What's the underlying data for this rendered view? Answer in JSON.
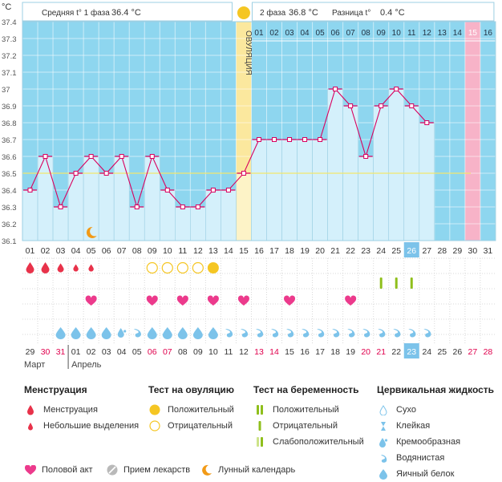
{
  "header": {
    "unit": "°C",
    "phase1_label": "Средняя t° 1 фаза",
    "phase1_value": "36.4 °C",
    "phase2_label": "2 фаза",
    "phase2_value": "36.8 °C",
    "diff_label": "Разница t°",
    "diff_value": "0.4 °C",
    "ovulation_label": "ОВУЛЯЦИЯ"
  },
  "chart_data": {
    "type": "line",
    "title": "",
    "ylabel": "°C",
    "ylim": [
      36.1,
      37.4
    ],
    "y_ticks": [
      "37.4",
      "37.3",
      "37.2",
      "37.1",
      "37",
      "36.9",
      "36.8",
      "36.7",
      "36.6",
      "36.5",
      "36.4",
      "36.3",
      "36.2",
      "36.1"
    ],
    "coverline": 36.5,
    "ovulation_day": 15,
    "current_day": 26,
    "expected_period_day": 30,
    "days": [
      "01",
      "02",
      "03",
      "04",
      "05",
      "06",
      "07",
      "08",
      "09",
      "10",
      "11",
      "12",
      "13",
      "14",
      "15",
      "16",
      "17",
      "18",
      "19",
      "20",
      "21",
      "22",
      "23",
      "24",
      "25",
      "26",
      "27",
      "28",
      "29",
      "30",
      "31"
    ],
    "phase2_day_labels": [
      "01",
      "02",
      "03",
      "04",
      "05",
      "06",
      "07",
      "08",
      "09",
      "10",
      "11",
      "12",
      "13",
      "14",
      "15",
      "16"
    ],
    "temperatures": [
      36.4,
      36.6,
      36.3,
      36.5,
      36.6,
      36.5,
      36.6,
      36.3,
      36.6,
      36.4,
      36.3,
      36.3,
      36.4,
      36.4,
      36.5,
      36.7,
      36.7,
      36.7,
      36.7,
      36.7,
      37.0,
      36.9,
      36.6,
      36.9,
      37.0,
      36.9,
      36.8
    ],
    "temperature_days": [
      1,
      2,
      3,
      4,
      5,
      6,
      7,
      8,
      9,
      10,
      11,
      12,
      13,
      14,
      15,
      16,
      17,
      18,
      19,
      20,
      21,
      22,
      23,
      24,
      25,
      26,
      27
    ],
    "dates": [
      "29",
      "30",
      "31",
      "01",
      "02",
      "03",
      "04",
      "05",
      "06",
      "07",
      "08",
      "09",
      "10",
      "11",
      "12",
      "13",
      "14",
      "15",
      "16",
      "17",
      "18",
      "19",
      "20",
      "21",
      "22",
      "23",
      "24",
      "25",
      "26",
      "27",
      "28"
    ],
    "red_dates": [
      "30",
      "31",
      "06",
      "07",
      "13",
      "14",
      "20",
      "21",
      "27",
      "28"
    ],
    "months": [
      "Март",
      "Апрель"
    ]
  },
  "rows": {
    "moon_day": 5,
    "menstruation": [
      {
        "day": 1,
        "kind": "big"
      },
      {
        "day": 2,
        "kind": "big"
      },
      {
        "day": 3,
        "kind": "mid"
      },
      {
        "day": 4,
        "kind": "small"
      },
      {
        "day": 5,
        "kind": "small"
      }
    ],
    "ovulation_tests": [
      {
        "day": 9,
        "kind": "neg"
      },
      {
        "day": 10,
        "kind": "neg"
      },
      {
        "day": 11,
        "kind": "neg"
      },
      {
        "day": 12,
        "kind": "neg"
      },
      {
        "day": 13,
        "kind": "pos"
      }
    ],
    "pregnancy_tests": [
      {
        "day": 24,
        "kind": "pos"
      },
      {
        "day": 25,
        "kind": "pos"
      },
      {
        "day": 26,
        "kind": "pos"
      }
    ],
    "intercourse_days": [
      5,
      9,
      11,
      13,
      15,
      18,
      22
    ],
    "fluid": [
      {
        "day": 3,
        "kind": "egg"
      },
      {
        "day": 4,
        "kind": "egg"
      },
      {
        "day": 5,
        "kind": "egg"
      },
      {
        "day": 6,
        "kind": "egg"
      },
      {
        "day": 7,
        "kind": "cream"
      },
      {
        "day": 8,
        "kind": "water"
      },
      {
        "day": 9,
        "kind": "egg"
      },
      {
        "day": 10,
        "kind": "egg"
      },
      {
        "day": 11,
        "kind": "egg"
      },
      {
        "day": 12,
        "kind": "egg"
      },
      {
        "day": 13,
        "kind": "egg"
      },
      {
        "day": 14,
        "kind": "water"
      },
      {
        "day": 15,
        "kind": "water"
      },
      {
        "day": 16,
        "kind": "water"
      },
      {
        "day": 17,
        "kind": "water"
      },
      {
        "day": 18,
        "kind": "water"
      },
      {
        "day": 19,
        "kind": "water"
      },
      {
        "day": 20,
        "kind": "water"
      },
      {
        "day": 21,
        "kind": "water"
      },
      {
        "day": 22,
        "kind": "water"
      },
      {
        "day": 23,
        "kind": "water"
      },
      {
        "day": 24,
        "kind": "water"
      },
      {
        "day": 25,
        "kind": "water"
      },
      {
        "day": 26,
        "kind": "water"
      },
      {
        "day": 27,
        "kind": "water"
      }
    ]
  },
  "legend": {
    "menstruation_title": "Менструация",
    "menstruation": "Менструация",
    "spotting": "Небольшие выделения",
    "ovulation_title": "Тест на овуляцию",
    "ov_positive": "Положительный",
    "ov_negative": "Отрицательный",
    "pregnancy_title": "Тест на беременность",
    "pr_positive": "Положительный",
    "pr_negative": "Отрицательный",
    "pr_weak": "Слабоположительный",
    "fluid_title": "Цервикальная жидкость",
    "fluid_dry": "Сухо",
    "fluid_sticky": "Клейкая",
    "fluid_creamy": "Кремообразная",
    "fluid_watery": "Водянистая",
    "fluid_egg": "Яичный белок",
    "intercourse": "Половой акт",
    "medication": "Прием лекарств",
    "lunar": "Лунный календарь"
  },
  "colors": {
    "sky": "#8ed6ef",
    "bar": "#d4f0fb",
    "bar_edge": "#9ccfe3",
    "line": "#d9005e",
    "ovulation": "#fbe89e",
    "period": "#f7b3c8",
    "coverline": "#f2e76d",
    "red": "#e8324a",
    "yellow": "#f5c623",
    "green": "#8fbf1c",
    "pink": "#ec3a8c",
    "drop": "#7cc3ea",
    "moon": "#f29a16",
    "grid": "#ffffff",
    "day_num": "#ffffff",
    "current": "#7cc3ea"
  }
}
